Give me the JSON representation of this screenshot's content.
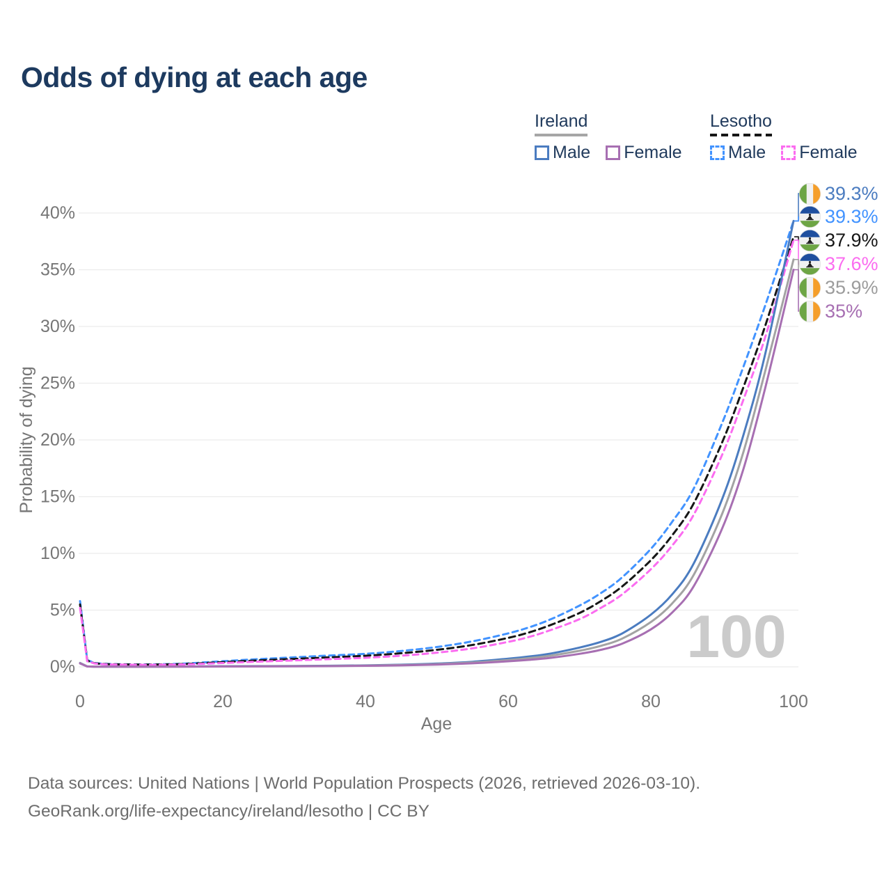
{
  "title": "Odds of dying at each age",
  "legend": {
    "groups": [
      {
        "country": "Ireland",
        "line_style": "solid",
        "underline_color": "#a6a6a6",
        "items": [
          {
            "label": "Male",
            "color": "#4b7cc0"
          },
          {
            "label": "Female",
            "color": "#a76fb2"
          }
        ]
      },
      {
        "country": "Lesotho",
        "line_style": "dashed",
        "underline_color": "#161616",
        "items": [
          {
            "label": "Male",
            "color": "#4293ff"
          },
          {
            "label": "Female",
            "color": "#fb6cf0"
          }
        ]
      }
    ]
  },
  "chart_data": {
    "type": "line",
    "title": "Odds of dying at each age",
    "xlabel": "Age",
    "ylabel": "Probability of dying",
    "xlim": [
      0,
      100
    ],
    "ylim": [
      0,
      40
    ],
    "x_ticks": [
      0,
      20,
      40,
      60,
      80,
      100
    ],
    "y_ticks": [
      0,
      5,
      10,
      15,
      20,
      25,
      30,
      35,
      40
    ],
    "y_tick_suffix": "%",
    "grid": "horizontal",
    "legend_position": "top-right",
    "watermark": "100",
    "series": [
      {
        "name": "Lesotho Male",
        "country": "Lesotho",
        "sex": "male",
        "color": "#4293ff",
        "dash": "8 6",
        "width": 3,
        "points": [
          [
            0,
            5.8
          ],
          [
            1,
            0.6
          ],
          [
            2,
            0.35
          ],
          [
            3,
            0.28
          ],
          [
            5,
            0.24
          ],
          [
            10,
            0.22
          ],
          [
            15,
            0.3
          ],
          [
            20,
            0.5
          ],
          [
            25,
            0.68
          ],
          [
            30,
            0.84
          ],
          [
            35,
            1.0
          ],
          [
            40,
            1.15
          ],
          [
            45,
            1.4
          ],
          [
            50,
            1.75
          ],
          [
            55,
            2.25
          ],
          [
            60,
            2.95
          ],
          [
            63,
            3.5
          ],
          [
            66,
            4.2
          ],
          [
            70,
            5.4
          ],
          [
            73,
            6.5
          ],
          [
            76,
            7.9
          ],
          [
            80,
            10.4
          ],
          [
            83,
            12.8
          ],
          [
            86,
            15.7
          ],
          [
            90,
            21.5
          ],
          [
            93,
            26.5
          ],
          [
            96,
            31.8
          ],
          [
            100,
            39.3
          ]
        ]
      },
      {
        "name": "Lesotho Both sexes",
        "country": "Lesotho",
        "sex": "both",
        "color": "#161616",
        "dash": "9 6",
        "width": 3,
        "points": [
          [
            0,
            5.5
          ],
          [
            1,
            0.55
          ],
          [
            2,
            0.32
          ],
          [
            3,
            0.26
          ],
          [
            5,
            0.22
          ],
          [
            10,
            0.2
          ],
          [
            15,
            0.26
          ],
          [
            20,
            0.42
          ],
          [
            25,
            0.57
          ],
          [
            30,
            0.7
          ],
          [
            35,
            0.84
          ],
          [
            40,
            0.98
          ],
          [
            45,
            1.2
          ],
          [
            50,
            1.5
          ],
          [
            55,
            1.93
          ],
          [
            60,
            2.55
          ],
          [
            63,
            3.05
          ],
          [
            66,
            3.7
          ],
          [
            70,
            4.75
          ],
          [
            73,
            5.8
          ],
          [
            76,
            7.1
          ],
          [
            80,
            9.4
          ],
          [
            83,
            11.6
          ],
          [
            86,
            14.4
          ],
          [
            90,
            19.8
          ],
          [
            93,
            24.7
          ],
          [
            96,
            30.0
          ],
          [
            100,
            37.9
          ]
        ]
      },
      {
        "name": "Lesotho Female",
        "country": "Lesotho",
        "sex": "female",
        "color": "#fb6cf0",
        "dash": "8 6",
        "width": 3,
        "points": [
          [
            0,
            5.2
          ],
          [
            1,
            0.5
          ],
          [
            2,
            0.3
          ],
          [
            3,
            0.24
          ],
          [
            5,
            0.2
          ],
          [
            10,
            0.18
          ],
          [
            15,
            0.22
          ],
          [
            20,
            0.34
          ],
          [
            25,
            0.46
          ],
          [
            30,
            0.57
          ],
          [
            35,
            0.68
          ],
          [
            40,
            0.8
          ],
          [
            45,
            0.98
          ],
          [
            50,
            1.25
          ],
          [
            55,
            1.63
          ],
          [
            60,
            2.2
          ],
          [
            63,
            2.65
          ],
          [
            66,
            3.25
          ],
          [
            70,
            4.2
          ],
          [
            73,
            5.2
          ],
          [
            76,
            6.4
          ],
          [
            80,
            8.6
          ],
          [
            83,
            10.7
          ],
          [
            86,
            13.4
          ],
          [
            90,
            18.7
          ],
          [
            93,
            23.6
          ],
          [
            96,
            29.0
          ],
          [
            100,
            37.6
          ]
        ]
      },
      {
        "name": "Ireland Male",
        "country": "Ireland",
        "sex": "male",
        "color": "#4b7cc0",
        "dash": "",
        "width": 3,
        "points": [
          [
            0,
            0.35
          ],
          [
            1,
            0.04
          ],
          [
            2,
            0.02
          ],
          [
            3,
            0.02
          ],
          [
            5,
            0.01
          ],
          [
            10,
            0.01
          ],
          [
            15,
            0.03
          ],
          [
            20,
            0.06
          ],
          [
            25,
            0.07
          ],
          [
            30,
            0.08
          ],
          [
            35,
            0.1
          ],
          [
            40,
            0.13
          ],
          [
            45,
            0.19
          ],
          [
            50,
            0.29
          ],
          [
            55,
            0.45
          ],
          [
            60,
            0.72
          ],
          [
            63,
            0.92
          ],
          [
            66,
            1.18
          ],
          [
            70,
            1.7
          ],
          [
            73,
            2.2
          ],
          [
            76,
            2.95
          ],
          [
            80,
            4.6
          ],
          [
            83,
            6.4
          ],
          [
            86,
            9.1
          ],
          [
            90,
            14.8
          ],
          [
            93,
            20.5
          ],
          [
            96,
            27.5
          ],
          [
            100,
            39.3
          ]
        ]
      },
      {
        "name": "Ireland Both sexes",
        "country": "Ireland",
        "sex": "both",
        "color": "#a3a3a3",
        "dash": "",
        "width": 3,
        "points": [
          [
            0,
            0.33
          ],
          [
            1,
            0.035
          ],
          [
            2,
            0.02
          ],
          [
            3,
            0.018
          ],
          [
            5,
            0.01
          ],
          [
            10,
            0.01
          ],
          [
            15,
            0.025
          ],
          [
            20,
            0.045
          ],
          [
            25,
            0.05
          ],
          [
            30,
            0.06
          ],
          [
            35,
            0.08
          ],
          [
            40,
            0.11
          ],
          [
            45,
            0.16
          ],
          [
            50,
            0.24
          ],
          [
            55,
            0.38
          ],
          [
            60,
            0.6
          ],
          [
            63,
            0.77
          ],
          [
            66,
            0.99
          ],
          [
            70,
            1.42
          ],
          [
            73,
            1.85
          ],
          [
            76,
            2.5
          ],
          [
            80,
            3.95
          ],
          [
            83,
            5.6
          ],
          [
            86,
            8.1
          ],
          [
            90,
            13.5
          ],
          [
            93,
            19.0
          ],
          [
            96,
            26.0
          ],
          [
            100,
            35.9
          ]
        ]
      },
      {
        "name": "Ireland Female",
        "country": "Ireland",
        "sex": "female",
        "color": "#a76fb2",
        "dash": "",
        "width": 3,
        "points": [
          [
            0,
            0.3
          ],
          [
            1,
            0.03
          ],
          [
            2,
            0.02
          ],
          [
            3,
            0.015
          ],
          [
            5,
            0.01
          ],
          [
            10,
            0.01
          ],
          [
            15,
            0.02
          ],
          [
            20,
            0.03
          ],
          [
            25,
            0.035
          ],
          [
            30,
            0.045
          ],
          [
            35,
            0.06
          ],
          [
            40,
            0.09
          ],
          [
            45,
            0.13
          ],
          [
            50,
            0.2
          ],
          [
            55,
            0.31
          ],
          [
            60,
            0.49
          ],
          [
            63,
            0.62
          ],
          [
            66,
            0.8
          ],
          [
            70,
            1.15
          ],
          [
            73,
            1.5
          ],
          [
            76,
            2.05
          ],
          [
            80,
            3.3
          ],
          [
            83,
            4.8
          ],
          [
            86,
            7.1
          ],
          [
            90,
            12.2
          ],
          [
            93,
            17.5
          ],
          [
            96,
            24.5
          ],
          [
            100,
            35.0
          ]
        ]
      }
    ],
    "end_labels": [
      {
        "flag": "ireland",
        "series": "Ireland Male",
        "value": "39.3%",
        "color": "#4b7cc0"
      },
      {
        "flag": "lesotho",
        "series": "Lesotho Male",
        "value": "39.3%",
        "color": "#4293ff"
      },
      {
        "flag": "lesotho",
        "series": "Lesotho Both sexes",
        "value": "37.9%",
        "color": "#161616"
      },
      {
        "flag": "lesotho",
        "series": "Lesotho Female",
        "value": "37.6%",
        "color": "#fb6cf0"
      },
      {
        "flag": "ireland",
        "series": "Ireland Both sexes",
        "value": "35.9%",
        "color": "#9c9c9c"
      },
      {
        "flag": "ireland",
        "series": "Ireland Female",
        "value": "35%",
        "color": "#a76fb2"
      }
    ]
  },
  "sources": {
    "line1": "Data sources: United Nations | World Population Prospects (2026, retrieved 2026-03-10).",
    "line2": "GeoRank.org/life-expectancy/ireland/lesotho | CC BY"
  }
}
